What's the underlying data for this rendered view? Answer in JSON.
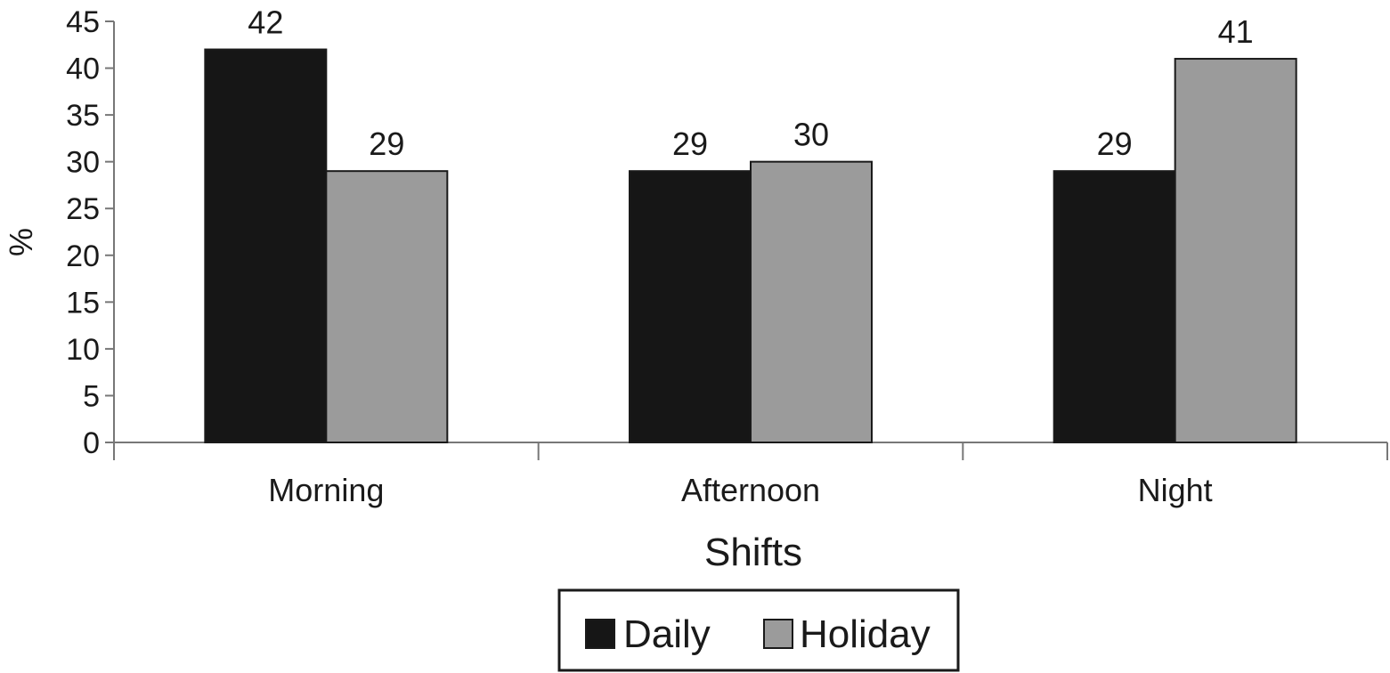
{
  "chart_data": {
    "type": "bar",
    "title": "",
    "xlabel": "Shifts",
    "ylabel": "%",
    "categories": [
      "Morning",
      "Afternoon",
      "Night"
    ],
    "series": [
      {
        "name": "Daily",
        "values": [
          42,
          29,
          29
        ],
        "color": "#161616"
      },
      {
        "name": "Holiday",
        "values": [
          29,
          30,
          41
        ],
        "color": "#9b9b9b"
      }
    ],
    "ylim": [
      0,
      45
    ],
    "yticks": [
      0,
      5,
      10,
      15,
      20,
      25,
      30,
      35,
      40,
      45
    ],
    "grid": false,
    "data_labels": true,
    "legend_position": "bottom-center"
  }
}
